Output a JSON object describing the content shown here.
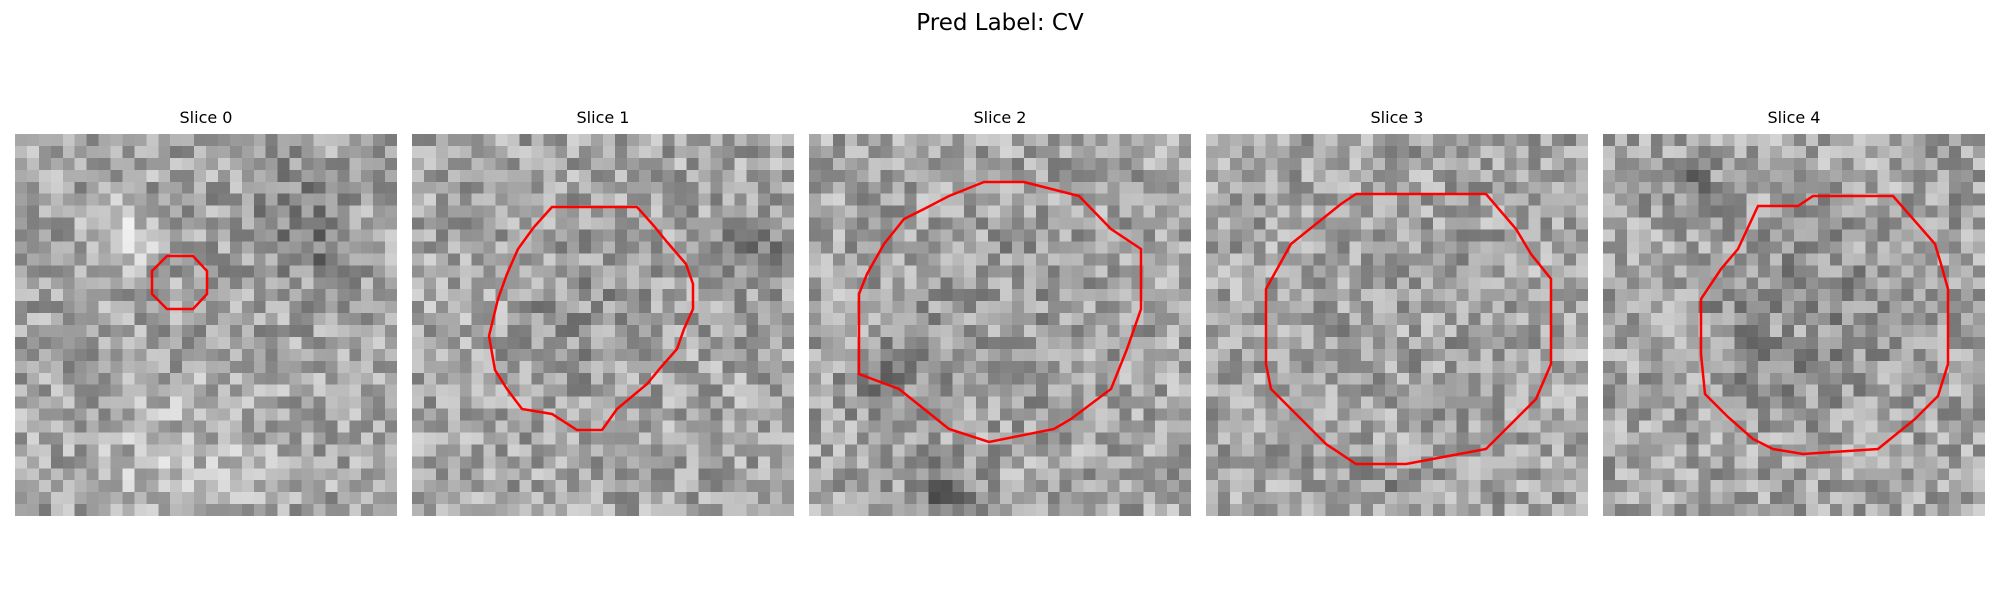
{
  "figure": {
    "title": "Pred Label: CV"
  },
  "contour_color": "#ff0000",
  "slices": [
    {
      "label": "Slice 0"
    },
    {
      "label": "Slice 1"
    },
    {
      "label": "Slice 2"
    },
    {
      "label": "Slice 3"
    },
    {
      "label": "Slice 4"
    }
  ]
}
